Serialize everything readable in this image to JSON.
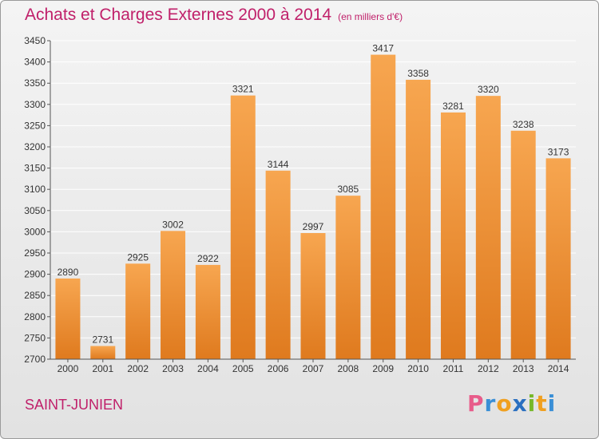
{
  "header": {
    "title": "Achats et Charges Externes 2000 à 2014",
    "unit": "(en milliers d'€)"
  },
  "footer": {
    "location": "SAINT-JUNIEN",
    "brand": "Proxiti"
  },
  "colors": {
    "title": "#c0206a",
    "bar_light": "#f6a34f",
    "bar_dark": "#e07c20",
    "grid": "#ffffff"
  },
  "chart_data": {
    "type": "bar",
    "title": "Achats et Charges Externes 2000 à 2014",
    "subtitle": "(en milliers d'€)",
    "xlabel": "",
    "ylabel": "",
    "categories": [
      "2000",
      "2001",
      "2002",
      "2003",
      "2004",
      "2005",
      "2006",
      "2007",
      "2008",
      "2009",
      "2010",
      "2011",
      "2012",
      "2013",
      "2014"
    ],
    "values": [
      2890,
      2731,
      2925,
      3002,
      2922,
      3321,
      3144,
      2997,
      3085,
      3417,
      3358,
      3281,
      3320,
      3238,
      3173
    ],
    "ylim": [
      2700,
      3450
    ],
    "yticks": [
      2700,
      2750,
      2800,
      2850,
      2900,
      2950,
      3000,
      3050,
      3100,
      3150,
      3200,
      3250,
      3300,
      3350,
      3400,
      3450
    ],
    "grid": true,
    "legend": "none"
  }
}
